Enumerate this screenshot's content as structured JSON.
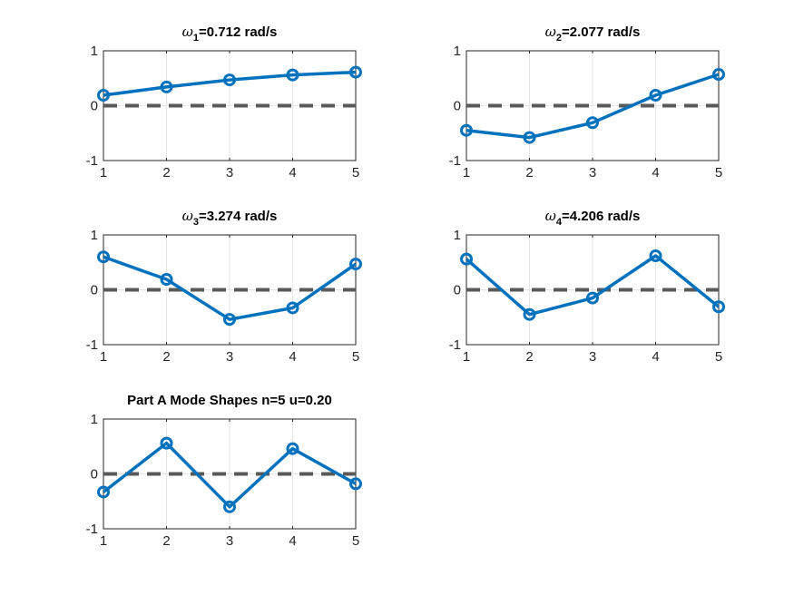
{
  "figure": {
    "background": "#ffffff"
  },
  "style": {
    "series_color": "#0072bd",
    "zero_line_color": "#595959"
  },
  "chart_data": [
    {
      "type": "line",
      "title_symbol": "ω",
      "title_sub": "1",
      "title_rest": "=0.712 rad/s",
      "x": [
        1,
        2,
        3,
        4,
        5
      ],
      "values": [
        0.19,
        0.34,
        0.47,
        0.56,
        0.61
      ],
      "xlim": [
        1,
        5
      ],
      "ylim": [
        -1,
        1
      ],
      "xticks": [
        "1",
        "2",
        "3",
        "4",
        "5"
      ],
      "yticks": [
        "-1",
        "0",
        "1"
      ],
      "zero_line": true,
      "grid": true
    },
    {
      "type": "line",
      "title_symbol": "ω",
      "title_sub": "2",
      "title_rest": "=2.077 rad/s",
      "x": [
        1,
        2,
        3,
        4,
        5
      ],
      "values": [
        -0.45,
        -0.58,
        -0.31,
        0.19,
        0.57
      ],
      "xlim": [
        1,
        5
      ],
      "ylim": [
        -1,
        1
      ],
      "xticks": [
        "1",
        "2",
        "3",
        "4",
        "5"
      ],
      "yticks": [
        "-1",
        "0",
        "1"
      ],
      "zero_line": true,
      "grid": true
    },
    {
      "type": "line",
      "title_symbol": "ω",
      "title_sub": "3",
      "title_rest": "=3.274 rad/s",
      "x": [
        1,
        2,
        3,
        4,
        5
      ],
      "values": [
        0.6,
        0.19,
        -0.54,
        -0.33,
        0.47
      ],
      "xlim": [
        1,
        5
      ],
      "ylim": [
        -1,
        1
      ],
      "xticks": [
        "1",
        "2",
        "3",
        "4",
        "5"
      ],
      "yticks": [
        "-1",
        "0",
        "1"
      ],
      "zero_line": true,
      "grid": true
    },
    {
      "type": "line",
      "title_symbol": "ω",
      "title_sub": "4",
      "title_rest": "=4.206 rad/s",
      "x": [
        1,
        2,
        3,
        4,
        5
      ],
      "values": [
        0.56,
        -0.45,
        -0.15,
        0.62,
        -0.31
      ],
      "xlim": [
        1,
        5
      ],
      "ylim": [
        -1,
        1
      ],
      "xticks": [
        "1",
        "2",
        "3",
        "4",
        "5"
      ],
      "yticks": [
        "-1",
        "0",
        "1"
      ],
      "zero_line": true,
      "grid": true
    },
    {
      "type": "line",
      "title_symbol": "",
      "title_sub": "",
      "title_rest": "Part A Mode Shapes n=5 u=0.20",
      "x": [
        1,
        2,
        3,
        4,
        5
      ],
      "values": [
        -0.33,
        0.56,
        -0.6,
        0.46,
        -0.18
      ],
      "xlim": [
        1,
        5
      ],
      "ylim": [
        -1,
        1
      ],
      "xticks": [
        "1",
        "2",
        "3",
        "4",
        "5"
      ],
      "yticks": [
        "-1",
        "0",
        "1"
      ],
      "zero_line": true,
      "grid": true
    }
  ]
}
